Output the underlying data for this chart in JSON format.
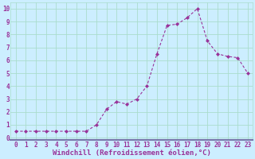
{
  "x": [
    0,
    1,
    2,
    3,
    4,
    5,
    6,
    7,
    8,
    9,
    10,
    11,
    12,
    13,
    14,
    15,
    16,
    17,
    18,
    19,
    20,
    21,
    22,
    23
  ],
  "y": [
    0.5,
    0.5,
    0.5,
    0.5,
    0.5,
    0.5,
    0.5,
    0.5,
    1.0,
    2.2,
    2.8,
    2.6,
    3.0,
    4.0,
    6.5,
    8.7,
    8.8,
    9.3,
    10.0,
    7.5,
    6.5,
    6.3,
    6.2,
    5.0
  ],
  "xlim": [
    -0.5,
    23.5
  ],
  "ylim": [
    -0.2,
    10.5
  ],
  "xtick_labels": [
    "0",
    "1",
    "2",
    "3",
    "4",
    "5",
    "6",
    "7",
    "8",
    "9",
    "10",
    "11",
    "12",
    "13",
    "14",
    "15",
    "16",
    "17",
    "18",
    "19",
    "20",
    "21",
    "22",
    "23"
  ],
  "ytick_labels": [
    "0",
    "1",
    "2",
    "3",
    "4",
    "5",
    "6",
    "7",
    "8",
    "9",
    "10"
  ],
  "xlabel": "Windchill (Refroidissement éolien,°C)",
  "line_color": "#993399",
  "marker_color": "#993399",
  "bg_color": "#cceeff",
  "grid_color": "#aaddcc",
  "bottom_bar_color": "#7777aa",
  "tick_label_color": "#993399",
  "xlabel_color": "#993399",
  "tick_fontsize": 5.5,
  "xlabel_fontsize": 6.5
}
